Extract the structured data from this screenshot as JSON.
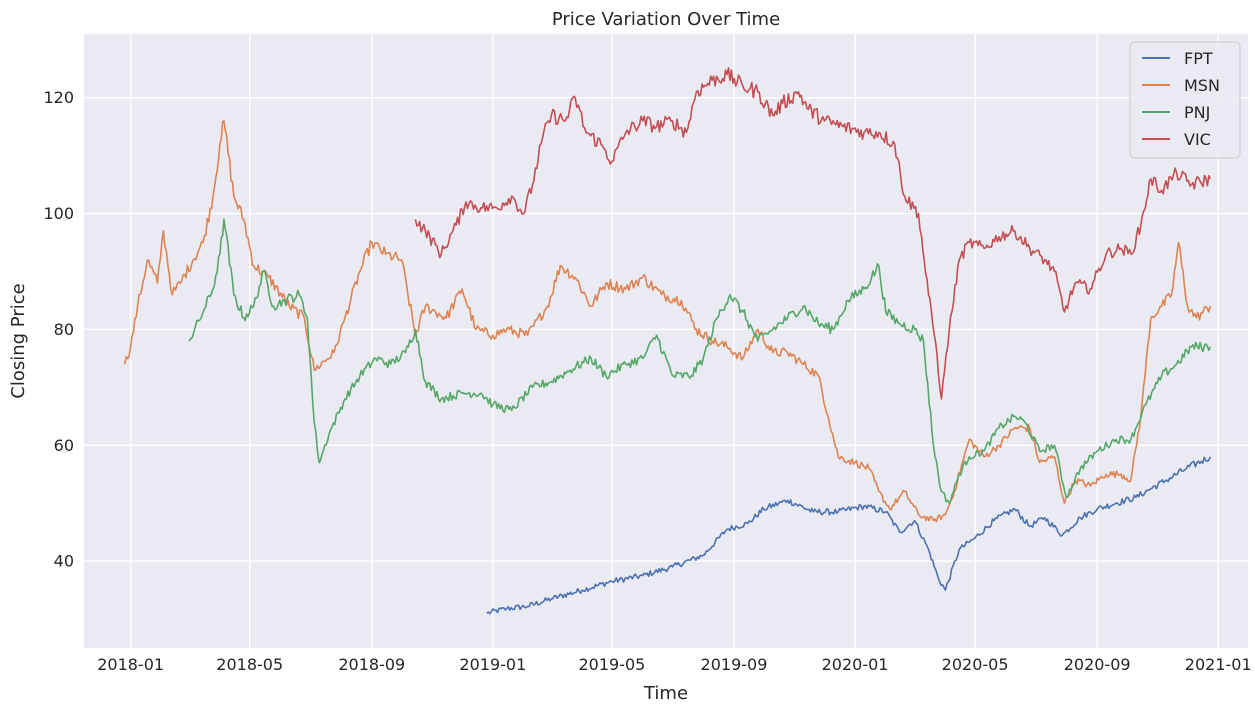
{
  "chart_data": {
    "type": "line",
    "title": "Price Variation Over Time",
    "xlabel": "Time",
    "ylabel": "Closing Price",
    "xlim": [
      "2017-11-15",
      "2021-01-31"
    ],
    "ylim": [
      25,
      131
    ],
    "x_ticks": [
      "2018-01",
      "2018-05",
      "2018-09",
      "2019-01",
      "2019-05",
      "2019-09",
      "2020-01",
      "2020-05",
      "2020-09",
      "2021-01"
    ],
    "y_ticks": [
      40,
      60,
      80,
      100,
      120
    ],
    "grid": true,
    "legend_position": "top-right",
    "background_color": "#eaeaf2",
    "grid_color": "#ffffff",
    "series": [
      {
        "name": "FPT",
        "color": "#4c72b0",
        "points": [
          [
            "2018-12-26",
            31
          ],
          [
            "2019-01-15",
            31.8
          ],
          [
            "2019-02-05",
            32.2
          ],
          [
            "2019-03-01",
            33.5
          ],
          [
            "2019-04-01",
            35
          ],
          [
            "2019-05-01",
            36.5
          ],
          [
            "2019-06-01",
            37.5
          ],
          [
            "2019-07-01",
            39
          ],
          [
            "2019-08-01",
            41
          ],
          [
            "2019-08-25",
            45.5
          ],
          [
            "2019-09-15",
            46.5
          ],
          [
            "2019-10-01",
            49
          ],
          [
            "2019-10-25",
            50.5
          ],
          [
            "2019-11-20",
            48.5
          ],
          [
            "2019-12-15",
            48.5
          ],
          [
            "2020-01-10",
            49.5
          ],
          [
            "2020-02-01",
            48.5
          ],
          [
            "2020-02-15",
            45
          ],
          [
            "2020-03-01",
            47
          ],
          [
            "2020-03-15",
            42
          ],
          [
            "2020-03-25",
            37
          ],
          [
            "2020-04-01",
            35
          ],
          [
            "2020-04-15",
            42
          ],
          [
            "2020-05-01",
            44
          ],
          [
            "2020-05-20",
            47
          ],
          [
            "2020-06-10",
            49
          ],
          [
            "2020-06-25",
            46
          ],
          [
            "2020-07-10",
            47.5
          ],
          [
            "2020-07-28",
            44.5
          ],
          [
            "2020-08-15",
            47.5
          ],
          [
            "2020-09-01",
            49
          ],
          [
            "2020-09-20",
            50
          ],
          [
            "2020-10-10",
            51
          ],
          [
            "2020-10-25",
            52.5
          ],
          [
            "2020-11-10",
            54
          ],
          [
            "2020-11-30",
            56
          ],
          [
            "2020-12-24",
            58
          ]
        ]
      },
      {
        "name": "MSN",
        "color": "#dd8452",
        "points": [
          [
            "2017-12-26",
            74
          ],
          [
            "2018-01-01",
            77
          ],
          [
            "2018-01-08",
            84
          ],
          [
            "2018-01-18",
            92
          ],
          [
            "2018-01-28",
            88
          ],
          [
            "2018-02-03",
            97
          ],
          [
            "2018-02-12",
            86
          ],
          [
            "2018-02-20",
            88
          ],
          [
            "2018-03-05",
            92
          ],
          [
            "2018-03-15",
            95
          ],
          [
            "2018-03-25",
            103
          ],
          [
            "2018-04-01",
            112
          ],
          [
            "2018-04-05",
            116
          ],
          [
            "2018-04-15",
            103
          ],
          [
            "2018-04-25",
            99
          ],
          [
            "2018-05-05",
            91
          ],
          [
            "2018-05-20",
            89
          ],
          [
            "2018-06-10",
            84
          ],
          [
            "2018-06-25",
            82
          ],
          [
            "2018-07-05",
            73
          ],
          [
            "2018-07-25",
            76
          ],
          [
            "2018-08-05",
            82
          ],
          [
            "2018-08-20",
            90
          ],
          [
            "2018-09-01",
            95
          ],
          [
            "2018-09-15",
            93
          ],
          [
            "2018-10-01",
            92
          ],
          [
            "2018-10-15",
            79
          ],
          [
            "2018-10-25",
            84
          ],
          [
            "2018-11-15",
            82
          ],
          [
            "2018-12-01",
            87
          ],
          [
            "2018-12-15",
            80
          ],
          [
            "2019-01-01",
            79
          ],
          [
            "2019-01-15",
            80
          ],
          [
            "2019-02-05",
            79
          ],
          [
            "2019-02-25",
            84
          ],
          [
            "2019-03-10",
            91
          ],
          [
            "2019-03-25",
            89
          ],
          [
            "2019-04-10",
            84
          ],
          [
            "2019-04-25",
            88
          ],
          [
            "2019-05-15",
            87
          ],
          [
            "2019-06-01",
            89
          ],
          [
            "2019-06-20",
            86
          ],
          [
            "2019-07-10",
            85
          ],
          [
            "2019-07-25",
            80
          ],
          [
            "2019-08-10",
            78
          ],
          [
            "2019-08-25",
            77
          ],
          [
            "2019-09-10",
            75
          ],
          [
            "2019-09-25",
            80
          ],
          [
            "2019-10-10",
            76
          ],
          [
            "2019-10-25",
            76
          ],
          [
            "2019-11-10",
            74
          ],
          [
            "2019-11-25",
            72
          ],
          [
            "2019-12-05",
            65
          ],
          [
            "2019-12-15",
            58
          ],
          [
            "2020-01-01",
            57
          ],
          [
            "2020-01-15",
            56
          ],
          [
            "2020-01-25",
            52
          ],
          [
            "2020-02-05",
            49
          ],
          [
            "2020-02-20",
            52
          ],
          [
            "2020-03-05",
            48
          ],
          [
            "2020-03-20",
            47
          ],
          [
            "2020-04-01",
            48
          ],
          [
            "2020-04-10",
            52
          ],
          [
            "2020-04-25",
            61
          ],
          [
            "2020-05-10",
            58
          ],
          [
            "2020-05-25",
            60
          ],
          [
            "2020-06-10",
            63
          ],
          [
            "2020-06-25",
            63
          ],
          [
            "2020-07-05",
            57
          ],
          [
            "2020-07-20",
            58
          ],
          [
            "2020-07-30",
            50
          ],
          [
            "2020-08-10",
            54
          ],
          [
            "2020-08-25",
            53
          ],
          [
            "2020-09-10",
            55
          ],
          [
            "2020-09-25",
            55
          ],
          [
            "2020-10-05",
            54
          ],
          [
            "2020-10-15",
            65
          ],
          [
            "2020-10-25",
            82
          ],
          [
            "2020-11-05",
            84
          ],
          [
            "2020-11-15",
            86
          ],
          [
            "2020-11-22",
            95
          ],
          [
            "2020-12-01",
            84
          ],
          [
            "2020-12-10",
            82
          ],
          [
            "2020-12-24",
            84
          ]
        ]
      },
      {
        "name": "PNJ",
        "color": "#55a868",
        "points": [
          [
            "2018-03-01",
            78
          ],
          [
            "2018-03-15",
            83
          ],
          [
            "2018-03-25",
            87
          ],
          [
            "2018-04-01",
            93
          ],
          [
            "2018-04-05",
            99
          ],
          [
            "2018-04-15",
            86
          ],
          [
            "2018-04-25",
            82
          ],
          [
            "2018-05-05",
            84
          ],
          [
            "2018-05-15",
            90
          ],
          [
            "2018-05-25",
            84
          ],
          [
            "2018-06-05",
            85
          ],
          [
            "2018-06-20",
            86
          ],
          [
            "2018-06-28",
            82
          ],
          [
            "2018-07-05",
            64
          ],
          [
            "2018-07-10",
            57
          ],
          [
            "2018-07-20",
            62
          ],
          [
            "2018-08-05",
            68
          ],
          [
            "2018-08-20",
            72
          ],
          [
            "2018-09-05",
            75
          ],
          [
            "2018-09-20",
            74
          ],
          [
            "2018-10-05",
            76
          ],
          [
            "2018-10-15",
            80
          ],
          [
            "2018-10-25",
            71
          ],
          [
            "2018-11-10",
            68
          ],
          [
            "2018-12-01",
            69
          ],
          [
            "2018-12-20",
            69
          ],
          [
            "2019-01-01",
            67
          ],
          [
            "2019-01-20",
            66
          ],
          [
            "2019-02-10",
            70
          ],
          [
            "2019-03-01",
            71
          ],
          [
            "2019-03-20",
            73
          ],
          [
            "2019-04-10",
            75
          ],
          [
            "2019-04-25",
            72
          ],
          [
            "2019-05-15",
            74
          ],
          [
            "2019-06-01",
            75
          ],
          [
            "2019-06-15",
            79
          ],
          [
            "2019-07-01",
            72
          ],
          [
            "2019-07-20",
            72
          ],
          [
            "2019-08-01",
            75
          ],
          [
            "2019-08-15",
            82
          ],
          [
            "2019-08-28",
            86
          ],
          [
            "2019-09-10",
            83
          ],
          [
            "2019-09-25",
            78
          ],
          [
            "2019-10-10",
            80
          ],
          [
            "2019-10-25",
            82
          ],
          [
            "2019-11-10",
            84
          ],
          [
            "2019-11-25",
            81
          ],
          [
            "2019-12-10",
            80
          ],
          [
            "2019-12-25",
            85
          ],
          [
            "2020-01-10",
            87
          ],
          [
            "2020-01-25",
            91
          ],
          [
            "2020-02-01",
            83
          ],
          [
            "2020-02-15",
            81
          ],
          [
            "2020-03-01",
            80
          ],
          [
            "2020-03-10",
            78
          ],
          [
            "2020-03-20",
            60
          ],
          [
            "2020-03-28",
            52
          ],
          [
            "2020-04-05",
            50
          ],
          [
            "2020-04-15",
            55
          ],
          [
            "2020-04-25",
            58
          ],
          [
            "2020-05-10",
            59
          ],
          [
            "2020-05-25",
            63
          ],
          [
            "2020-06-10",
            65
          ],
          [
            "2020-06-20",
            64
          ],
          [
            "2020-07-05",
            59
          ],
          [
            "2020-07-20",
            60
          ],
          [
            "2020-08-01",
            51
          ],
          [
            "2020-08-15",
            56
          ],
          [
            "2020-09-01",
            59
          ],
          [
            "2020-09-20",
            61
          ],
          [
            "2020-10-05",
            61
          ],
          [
            "2020-10-20",
            67
          ],
          [
            "2020-11-05",
            72
          ],
          [
            "2020-11-20",
            74
          ],
          [
            "2020-12-05",
            77
          ],
          [
            "2020-12-24",
            77
          ]
        ]
      },
      {
        "name": "VIC",
        "color": "#c44e52",
        "points": [
          [
            "2018-10-15",
            99
          ],
          [
            "2018-10-25",
            97
          ],
          [
            "2018-11-10",
            93
          ],
          [
            "2018-11-25",
            98
          ],
          [
            "2018-12-05",
            102
          ],
          [
            "2018-12-20",
            101
          ],
          [
            "2019-01-05",
            101
          ],
          [
            "2019-01-20",
            103
          ],
          [
            "2019-02-01",
            100
          ],
          [
            "2019-02-10",
            105
          ],
          [
            "2019-02-20",
            113
          ],
          [
            "2019-03-01",
            117
          ],
          [
            "2019-03-15",
            116
          ],
          [
            "2019-03-25",
            120
          ],
          [
            "2019-04-05",
            114
          ],
          [
            "2019-04-20",
            112
          ],
          [
            "2019-05-01",
            109
          ],
          [
            "2019-05-15",
            114
          ],
          [
            "2019-06-01",
            116
          ],
          [
            "2019-06-15",
            115
          ],
          [
            "2019-07-01",
            116
          ],
          [
            "2019-07-15",
            114
          ],
          [
            "2019-07-25",
            121
          ],
          [
            "2019-08-10",
            123
          ],
          [
            "2019-08-25",
            124
          ],
          [
            "2019-09-10",
            122
          ],
          [
            "2019-09-25",
            121
          ],
          [
            "2019-10-10",
            117
          ],
          [
            "2019-10-20",
            119
          ],
          [
            "2019-11-05",
            121
          ],
          [
            "2019-11-15",
            118
          ],
          [
            "2019-12-01",
            116
          ],
          [
            "2019-12-20",
            115
          ],
          [
            "2020-01-10",
            114
          ],
          [
            "2020-01-25",
            114
          ],
          [
            "2020-02-10",
            112
          ],
          [
            "2020-02-20",
            103
          ],
          [
            "2020-03-05",
            100
          ],
          [
            "2020-03-15",
            86
          ],
          [
            "2020-03-22",
            78
          ],
          [
            "2020-03-28",
            68
          ],
          [
            "2020-04-05",
            80
          ],
          [
            "2020-04-15",
            92
          ],
          [
            "2020-04-25",
            95
          ],
          [
            "2020-05-10",
            94
          ],
          [
            "2020-05-25",
            96
          ],
          [
            "2020-06-10",
            97
          ],
          [
            "2020-06-25",
            94
          ],
          [
            "2020-07-10",
            92
          ],
          [
            "2020-07-20",
            90
          ],
          [
            "2020-07-30",
            83
          ],
          [
            "2020-08-10",
            88
          ],
          [
            "2020-08-25",
            87
          ],
          [
            "2020-09-10",
            93
          ],
          [
            "2020-09-25",
            94
          ],
          [
            "2020-10-05",
            93
          ],
          [
            "2020-10-15",
            98
          ],
          [
            "2020-10-25",
            106
          ],
          [
            "2020-11-05",
            104
          ],
          [
            "2020-11-20",
            107
          ],
          [
            "2020-12-05",
            105
          ],
          [
            "2020-12-24",
            106
          ]
        ]
      }
    ]
  }
}
